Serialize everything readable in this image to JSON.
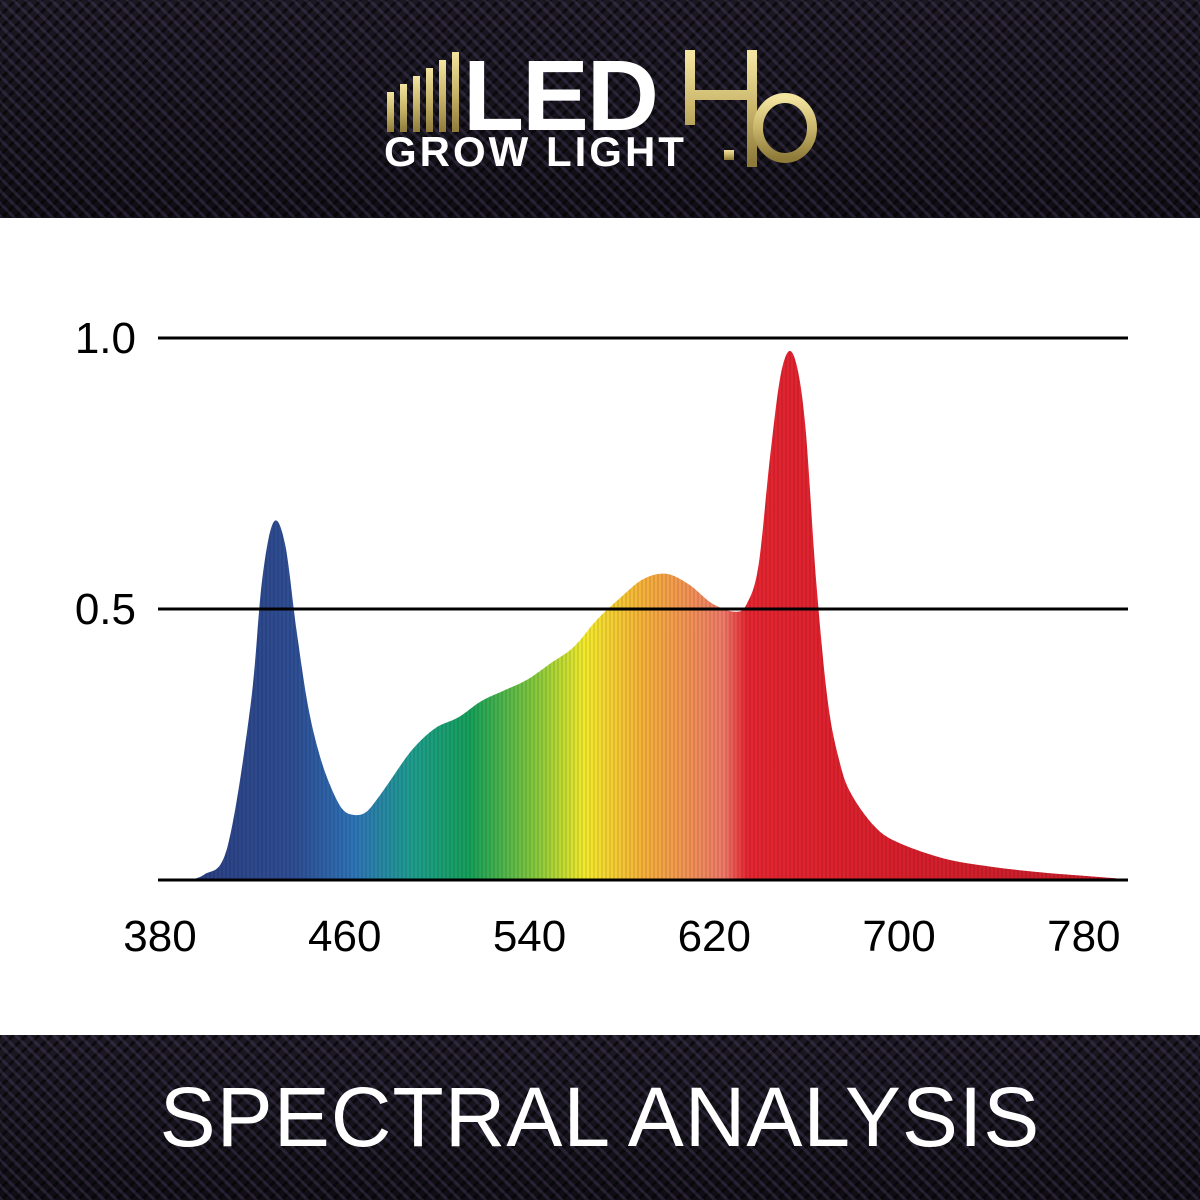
{
  "brand": {
    "bars_label": "IIIII",
    "led": "LED",
    "grow_light": "GROW LIGHT",
    "version": "4.0",
    "gold_color": "#c9b56a"
  },
  "footer": {
    "title": "SPECTRAL ANALYSIS"
  },
  "chart_data": {
    "type": "area",
    "xlim": [
      380,
      800
    ],
    "ylim": [
      0,
      1.0
    ],
    "xticks": [
      "380",
      "460",
      "540",
      "620",
      "700",
      "780"
    ],
    "yticks": [
      "0.5",
      "1.0"
    ],
    "grid": true,
    "series": [
      {
        "x": [
          380,
          390,
          400,
          410,
          420,
          425,
          430,
          435,
          440,
          445,
          450,
          455,
          460,
          465,
          470,
          475,
          480,
          490,
          500,
          510,
          520,
          530,
          540,
          550,
          560,
          570,
          580,
          590,
          600,
          610,
          620,
          630,
          635,
          640,
          645,
          650,
          655,
          660,
          665,
          670,
          675,
          680,
          690,
          700,
          720,
          740,
          760,
          780,
          795
        ],
        "y": [
          0.0,
          0.0,
          0.01,
          0.06,
          0.32,
          0.55,
          0.66,
          0.62,
          0.46,
          0.32,
          0.23,
          0.17,
          0.13,
          0.12,
          0.125,
          0.15,
          0.18,
          0.24,
          0.28,
          0.3,
          0.33,
          0.35,
          0.37,
          0.4,
          0.43,
          0.48,
          0.52,
          0.555,
          0.565,
          0.545,
          0.51,
          0.495,
          0.51,
          0.58,
          0.78,
          0.94,
          0.97,
          0.85,
          0.55,
          0.33,
          0.22,
          0.16,
          0.1,
          0.07,
          0.04,
          0.025,
          0.015,
          0.008,
          0.003
        ]
      }
    ],
    "spectrum_colors": [
      {
        "nm": 380,
        "color": "#2a3a7c"
      },
      {
        "nm": 440,
        "color": "#2f4f95"
      },
      {
        "nm": 465,
        "color": "#2f74b8"
      },
      {
        "nm": 490,
        "color": "#1f9e8e"
      },
      {
        "nm": 515,
        "color": "#16a05a"
      },
      {
        "nm": 545,
        "color": "#8ccb3c"
      },
      {
        "nm": 565,
        "color": "#f4ea2c"
      },
      {
        "nm": 590,
        "color": "#f6b13a"
      },
      {
        "nm": 625,
        "color": "#ef7a6a"
      },
      {
        "nm": 635,
        "color": "#e62631"
      },
      {
        "nm": 700,
        "color": "#d81f2c"
      },
      {
        "nm": 800,
        "color": "#c41e2a"
      }
    ]
  }
}
